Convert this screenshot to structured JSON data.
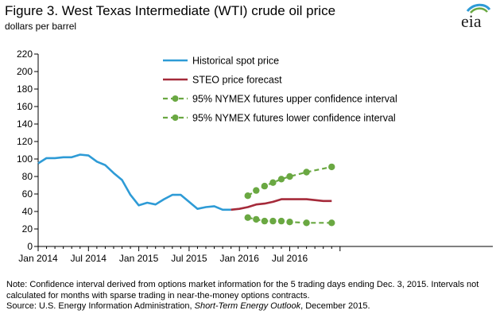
{
  "header": {
    "title": "Figure 3. West Texas Intermediate  (WTI) crude oil price",
    "subtitle": "dollars per barrel",
    "logo": "eia"
  },
  "footer": {
    "note": "Note: Confidence interval derived  from options market information for the 5 trading days ending Dec. 3, 2015. Intervals  not calculated for months with sparse trading in near-the-money  options contracts.",
    "source_prefix": "Source: U.S. Energy Information  Administration, ",
    "source_italic": "Short-Term Energy Outlook",
    "source_suffix": ", December 2015."
  },
  "chart_data": {
    "type": "line",
    "title": "Figure 3. West Texas Intermediate  (WTI) crude oil price",
    "ylabel": "dollars per barrel",
    "ylim": [
      0,
      220
    ],
    "yticks": [
      0,
      20,
      40,
      60,
      80,
      100,
      120,
      140,
      160,
      180,
      200,
      220
    ],
    "xlim": [
      0,
      35
    ],
    "xticks": [
      {
        "month": 0,
        "label": "Jan 2014"
      },
      {
        "month": 6,
        "label": "Jul 2014"
      },
      {
        "month": 12,
        "label": "Jan 2015"
      },
      {
        "month": 18,
        "label": "Jul 2015"
      },
      {
        "month": 24,
        "label": "Jan 2016"
      },
      {
        "month": 30,
        "label": "Jul 2016"
      }
    ],
    "legend_position": "top-center",
    "series": [
      {
        "name": "Historical spot price",
        "color": "#2e9bd6",
        "style": "solid",
        "x": [
          0,
          1,
          2,
          3,
          4,
          5,
          6,
          7,
          8,
          9,
          10,
          11,
          12,
          13,
          14,
          15,
          16,
          17,
          18,
          19,
          20,
          21,
          22,
          23
        ],
        "values": [
          95,
          101,
          101,
          102,
          102,
          105,
          104,
          97,
          93,
          84,
          76,
          59,
          47,
          50,
          48,
          54,
          59,
          59,
          51,
          43,
          45,
          46,
          42,
          42
        ]
      },
      {
        "name": "STEO price forecast",
        "color": "#a52a3a",
        "style": "solid",
        "x": [
          23,
          24,
          25,
          26,
          27,
          28,
          29,
          30,
          31,
          32,
          33,
          34,
          35
        ],
        "values": [
          42,
          43,
          45,
          48,
          49,
          51,
          54,
          54,
          54,
          54,
          53,
          52,
          52
        ]
      },
      {
        "name": "95% NYMEX futures upper confidence interval",
        "color": "#6aa842",
        "style": "dashed-markers",
        "x": [
          25,
          26,
          27,
          28,
          29,
          30,
          32,
          35
        ],
        "values": [
          58,
          64,
          69,
          73,
          77,
          80,
          85,
          91
        ]
      },
      {
        "name": "95% NYMEX futures lower confidence interval",
        "color": "#6aa842",
        "style": "dashed-markers",
        "x": [
          25,
          26,
          27,
          28,
          29,
          30,
          32,
          35
        ],
        "values": [
          33,
          31,
          29,
          29,
          29,
          28,
          27,
          27
        ]
      }
    ]
  }
}
